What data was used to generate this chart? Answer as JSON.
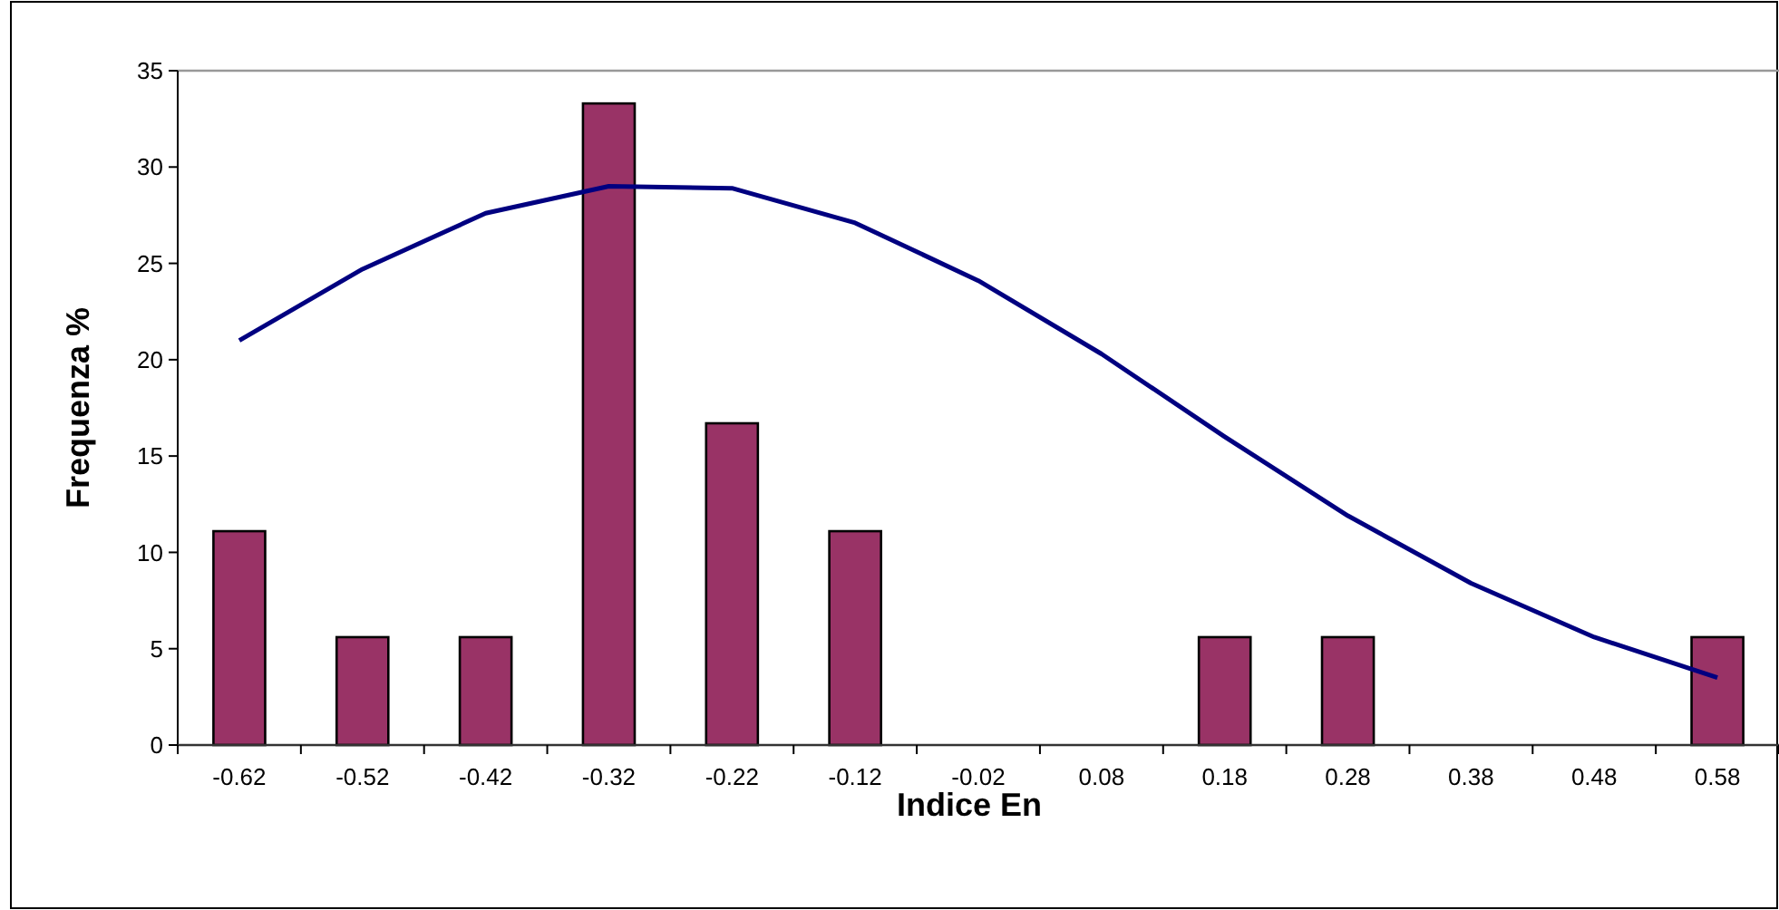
{
  "chart_data": {
    "type": "bar",
    "xlabel": "Indice En",
    "ylabel": "Frequenza %",
    "categories": [
      "-0.62",
      "-0.52",
      "-0.42",
      "-0.32",
      "-0.22",
      "-0.12",
      "-0.02",
      "0.08",
      "0.18",
      "0.28",
      "0.38",
      "0.48",
      "0.58"
    ],
    "series": [
      {
        "color": "#993366",
        "values": [
          11.1,
          5.6,
          5.6,
          33.3,
          16.7,
          11.1,
          0,
          0,
          5.6,
          5.6,
          0,
          0,
          5.6
        ]
      },
      {
        "type": "line",
        "color": "#000080",
        "values": [
          21,
          24.7,
          27.6,
          29,
          28.9,
          27.1,
          24.1,
          20.3,
          16,
          11.9,
          8.4,
          5.6,
          3.5
        ]
      }
    ],
    "ylim": [
      0,
      35
    ],
    "yticks": [
      0,
      5,
      10,
      15,
      20,
      25,
      30,
      35
    ],
    "grid": false
  }
}
